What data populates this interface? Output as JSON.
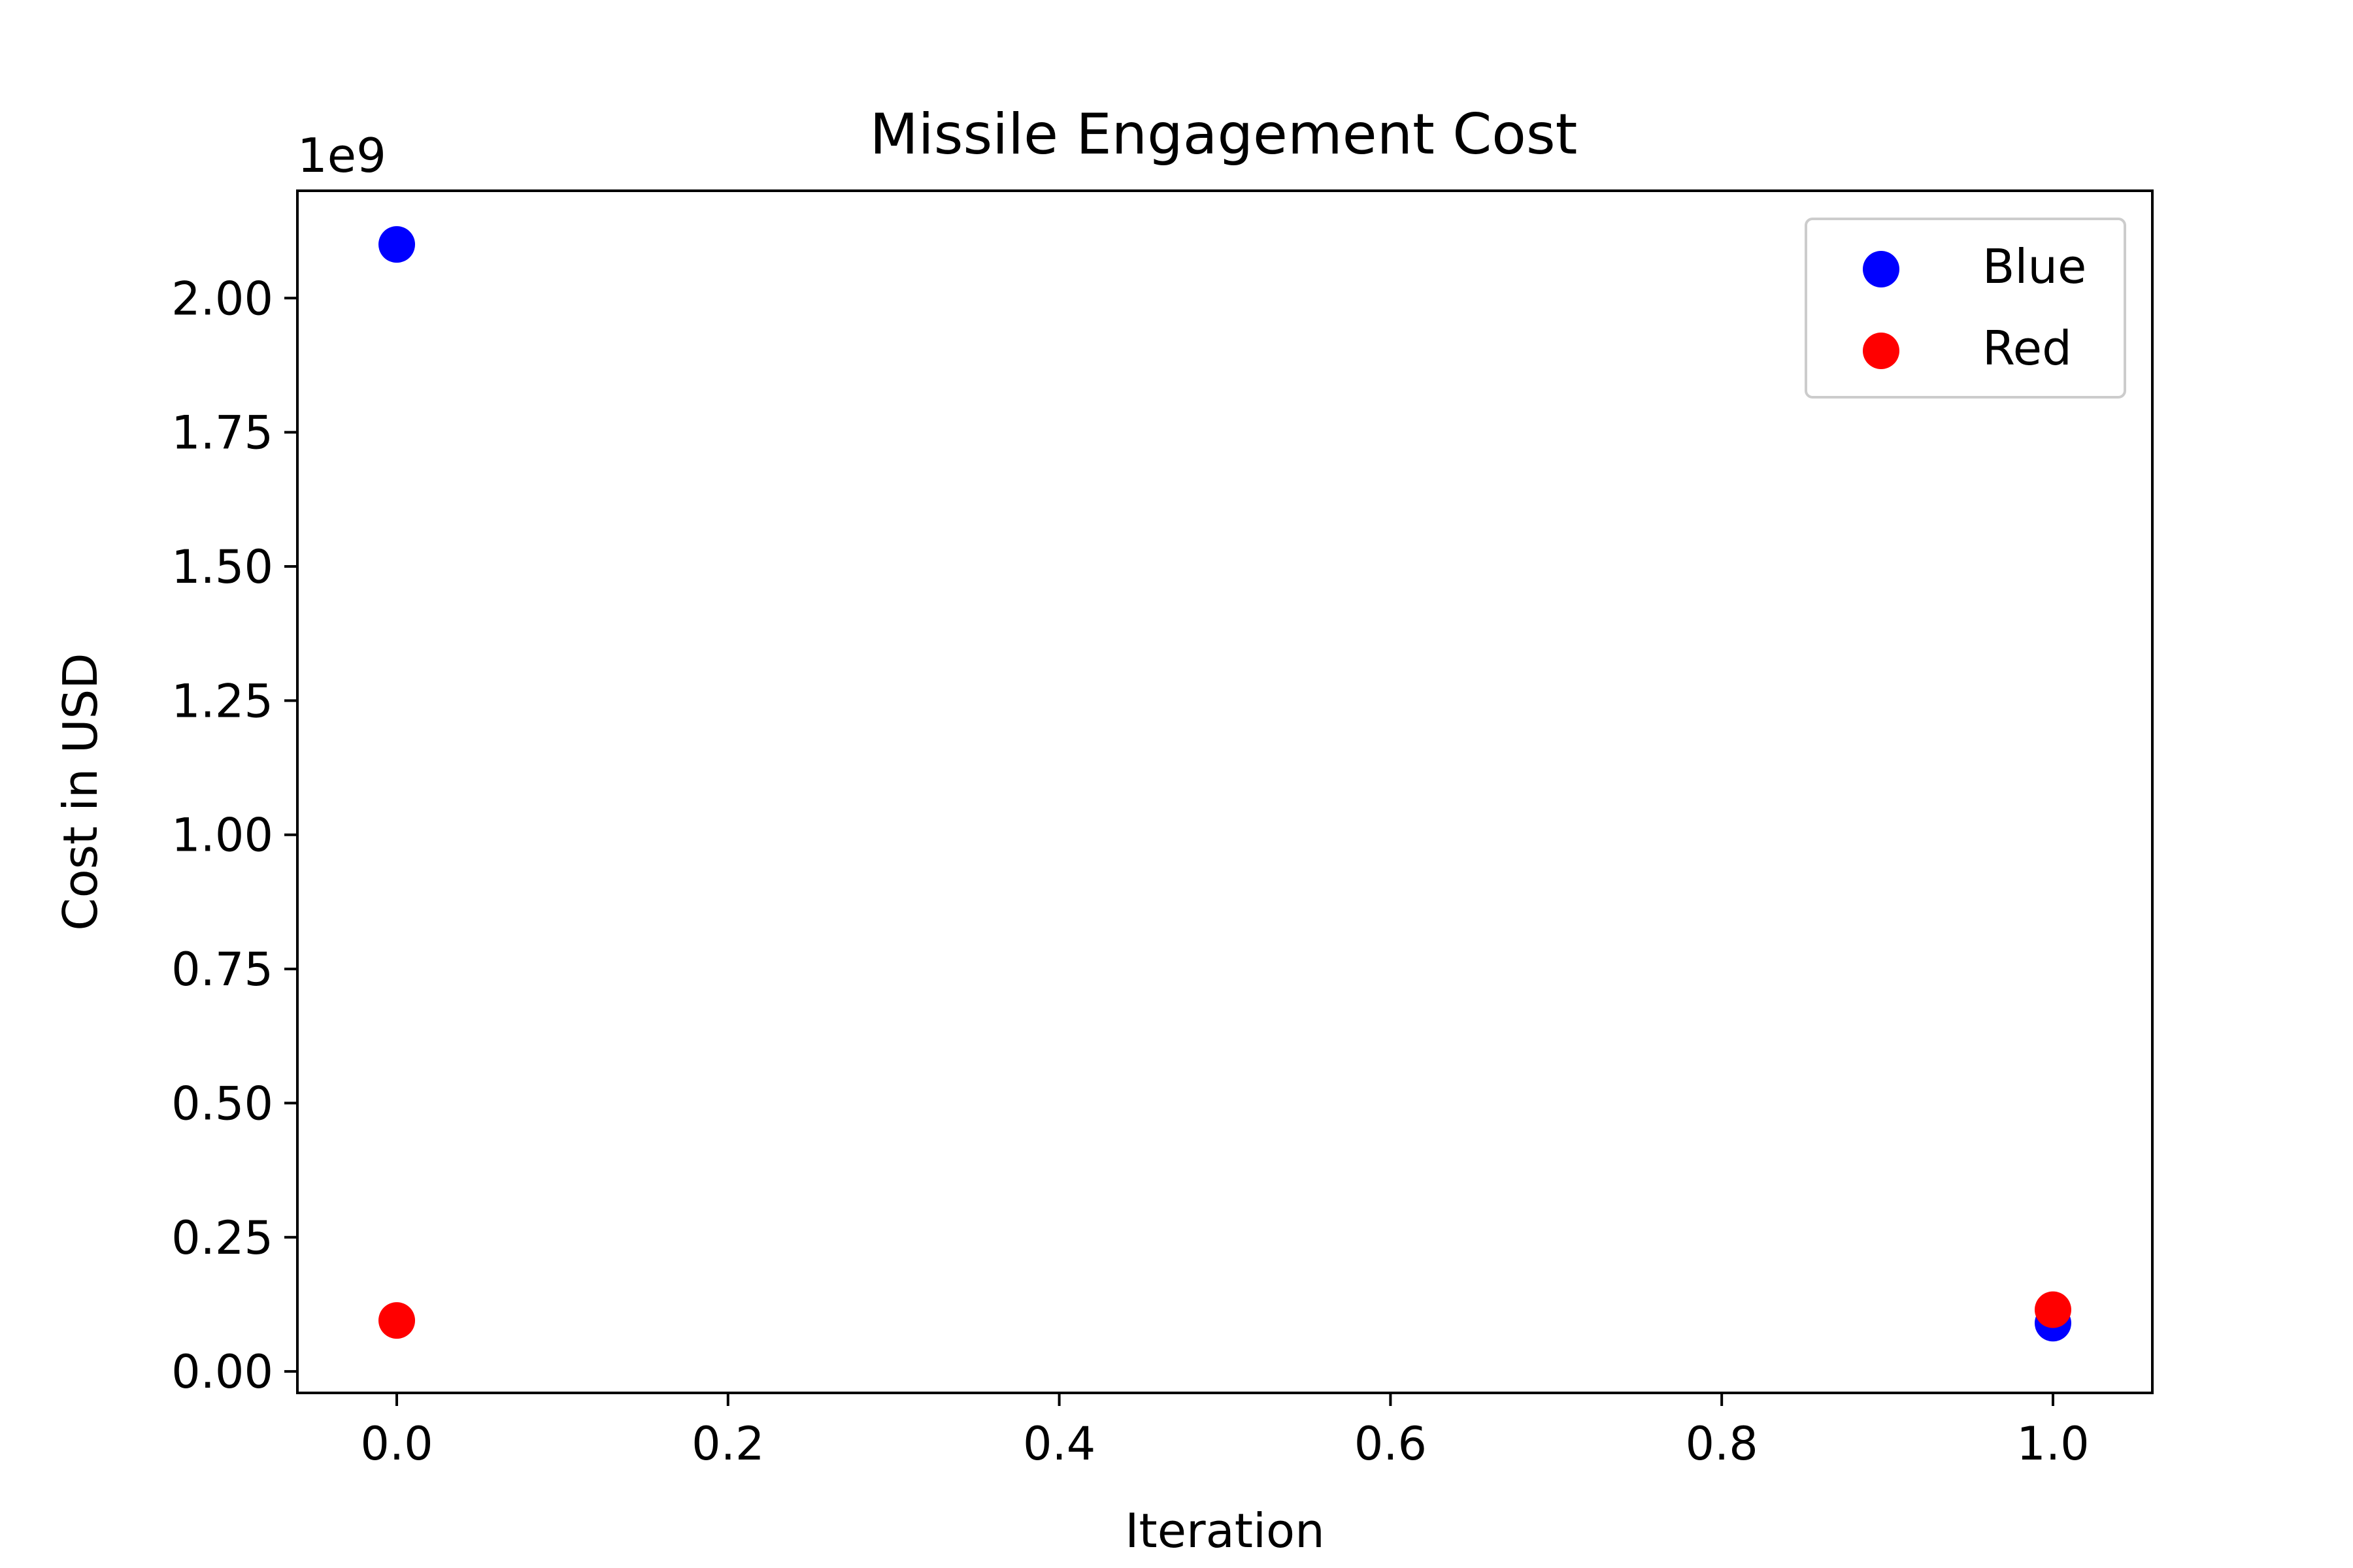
{
  "colors": {
    "blue": "#0000ff",
    "red": "#ff0000",
    "axes": "#000000",
    "legend_border": "#cccccc",
    "background": "#ffffff"
  },
  "chart_data": {
    "type": "scatter",
    "title": "Missile Engagement Cost",
    "xlabel": "Iteration",
    "ylabel": "Cost in USD",
    "y_multiplier": "1e9",
    "xlim": [
      -0.06,
      1.06
    ],
    "ylim": [
      -0.04,
      2.2
    ],
    "x_ticks": [
      0.0,
      0.2,
      0.4,
      0.6,
      0.8,
      1.0
    ],
    "x_tick_labels": [
      "0.0",
      "0.2",
      "0.4",
      "0.6",
      "0.8",
      "1.0"
    ],
    "y_ticks": [
      0.0,
      0.25,
      0.5,
      0.75,
      1.0,
      1.25,
      1.5,
      1.75,
      2.0
    ],
    "y_tick_labels": [
      "0.00",
      "0.25",
      "0.50",
      "0.75",
      "1.00",
      "1.25",
      "1.50",
      "1.75",
      "2.00"
    ],
    "grid": false,
    "legend_position": "top-right",
    "series": [
      {
        "name": "Blue",
        "color": "#0000ff",
        "x": [
          0,
          1
        ],
        "y": [
          2.1,
          0.09
        ]
      },
      {
        "name": "Red",
        "color": "#ff0000",
        "x": [
          0,
          1
        ],
        "y": [
          0.095,
          0.115
        ]
      }
    ]
  }
}
